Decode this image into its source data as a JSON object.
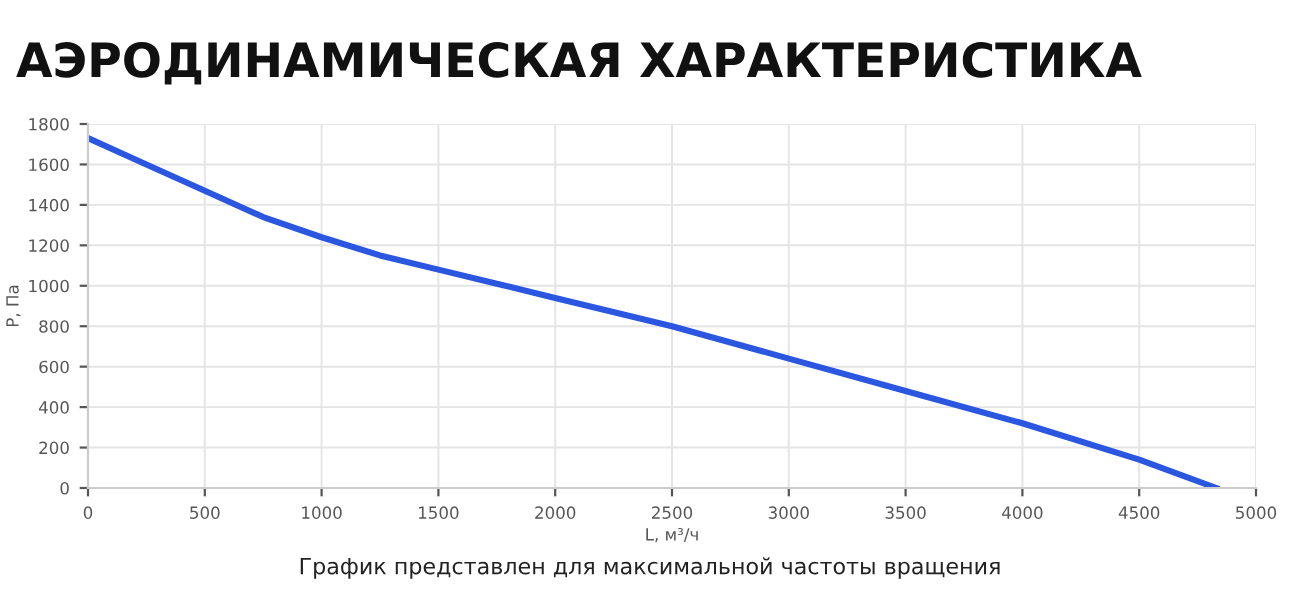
{
  "chart_data": {
    "type": "line",
    "title": "АЭРОДИНАМИЧЕСКАЯ ХАРАКТЕРИСТИКА",
    "xlabel": "L, м³/ч",
    "ylabel": "P, Па",
    "annotations": [
      "График представлен для максимальной частоты вращения"
    ],
    "x": [
      0,
      250,
      500,
      750,
      1000,
      1250,
      1500,
      1750,
      2000,
      2500,
      3000,
      3500,
      4000,
      4500,
      4830
    ],
    "series": [
      {
        "color": "#2a56e0",
        "values": [
          1730,
          1600,
          1470,
          1340,
          1240,
          1150,
          1080,
          1010,
          940,
          800,
          640,
          480,
          320,
          140,
          0
        ]
      }
    ],
    "xlim": [
      0,
      5000
    ],
    "xticks": [
      0,
      500,
      1000,
      1500,
      2000,
      2500,
      3000,
      3500,
      4000,
      4500,
      5000
    ],
    "ylim": [
      0,
      1800
    ],
    "yticks": [
      0,
      200,
      400,
      600,
      800,
      1000,
      1200,
      1400,
      1600,
      1800
    ],
    "grid": true,
    "marker": "none",
    "line_style": "solid",
    "legend": false
  }
}
